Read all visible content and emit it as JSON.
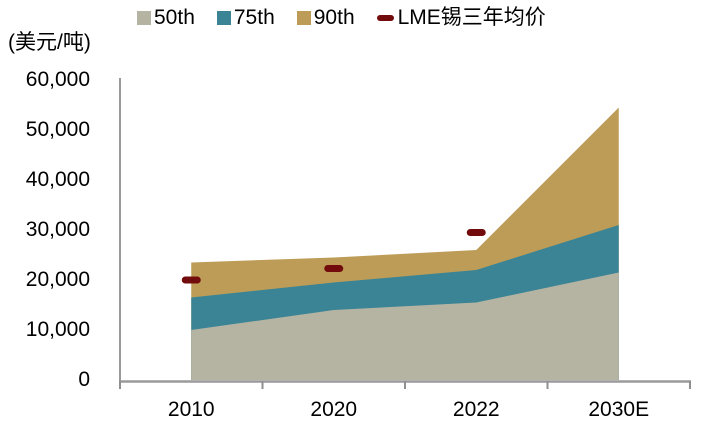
{
  "unit_label": "(美元/吨)",
  "chart_data": {
    "type": "area",
    "stacked": false,
    "title": "",
    "xlabel": "",
    "ylabel": "(美元/吨)",
    "categories": [
      "2010",
      "2020",
      "2022",
      "2030E"
    ],
    "series": [
      {
        "name": "50th",
        "type": "area",
        "color": "#b5b4a3",
        "values": [
          10000,
          14000,
          15500,
          21500
        ]
      },
      {
        "name": "75th",
        "type": "area",
        "color": "#3a8496",
        "values": [
          16500,
          19500,
          22000,
          31000
        ]
      },
      {
        "name": "90th",
        "type": "area",
        "color": "#bc9c56",
        "values": [
          23500,
          24500,
          26000,
          54500
        ]
      },
      {
        "name": "LME锡三年均价",
        "type": "dash",
        "color": "#720c0c",
        "values": [
          20000,
          22300,
          29500,
          null
        ]
      }
    ],
    "ylim": [
      0,
      60000
    ],
    "ytick_step": 10000,
    "yticks": [
      "0",
      "10,000",
      "20,000",
      "30,000",
      "40,000",
      "50,000",
      "60,000"
    ],
    "legend_position": "top",
    "grid": false
  }
}
